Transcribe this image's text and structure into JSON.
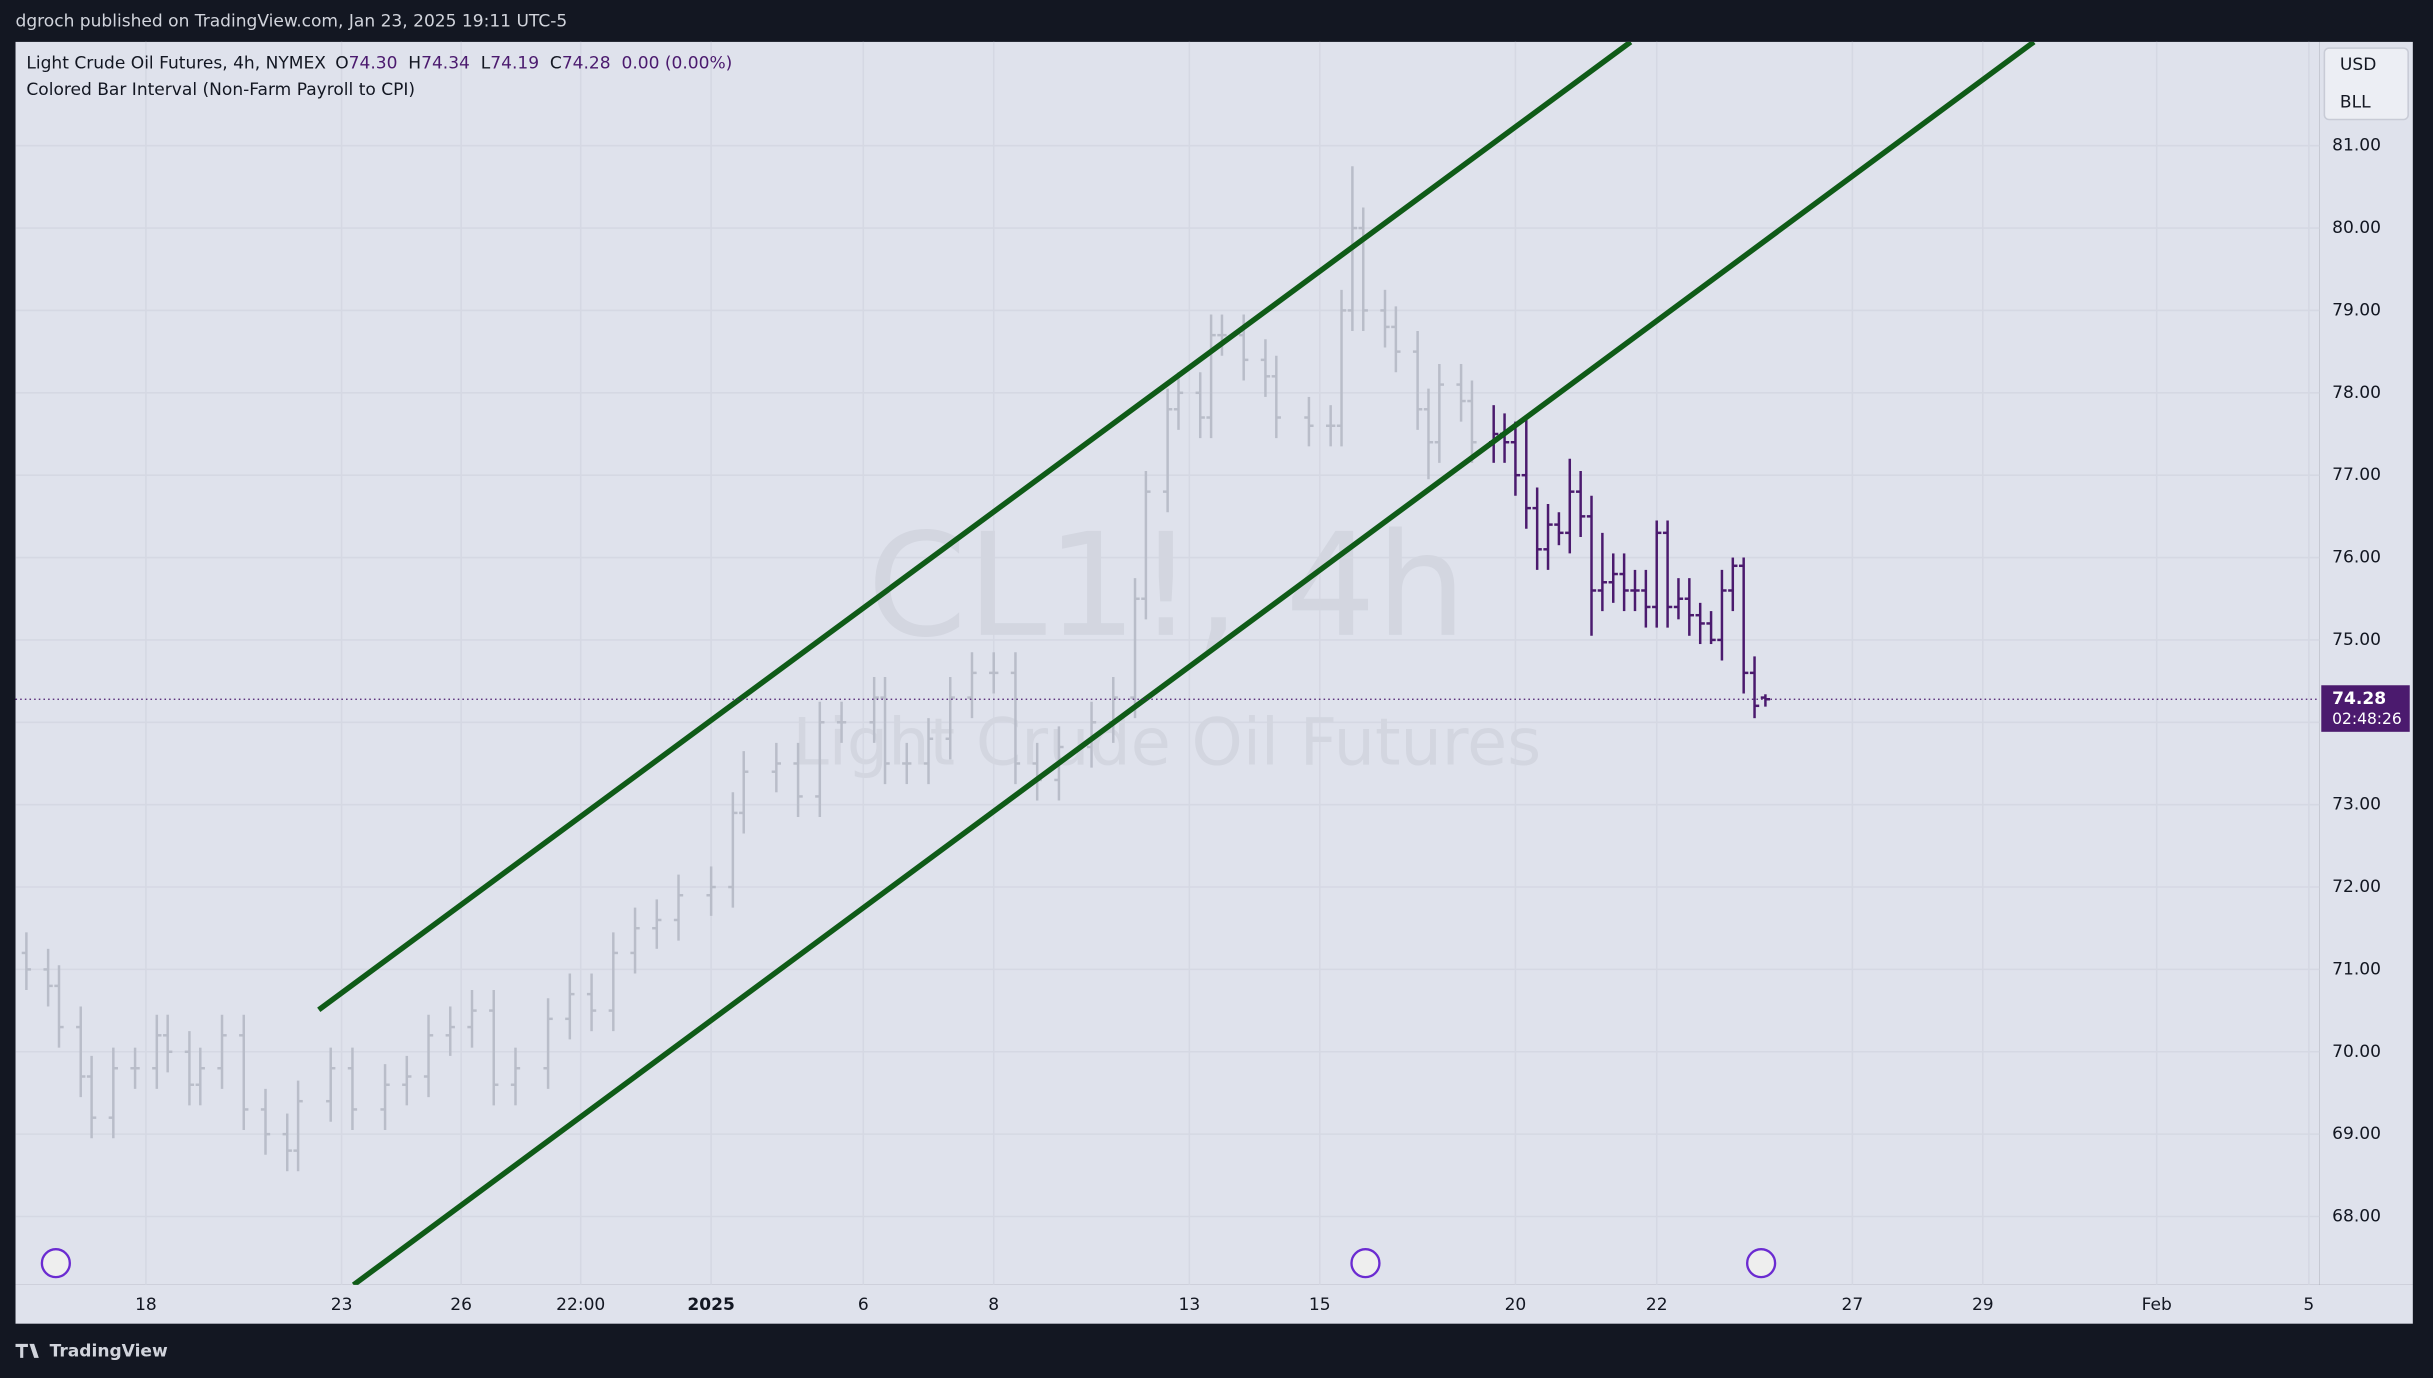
{
  "header": {
    "byline": "dgroch published on TradingView.com, Jan 23, 2025 19:11 UTC-5"
  },
  "footer": {
    "brand": "TradingView"
  },
  "chart_data": {
    "type": "ohlc",
    "symbol": "Light Crude Oil Futures, 4h, NYMEX",
    "quote": [
      {
        "label": "O",
        "value": "74.30"
      },
      {
        "label": "H",
        "value": "74.34"
      },
      {
        "label": "L",
        "value": "74.19"
      },
      {
        "label": "C",
        "value": "74.28"
      },
      {
        "label": "",
        "value": "0.00 (0.00%)"
      }
    ],
    "indicator": "Colored Bar Interval (Non-Farm Payroll to CPI)",
    "watermark": [
      "CL1!, 4h",
      "Light Crude Oil Futures"
    ],
    "currency": "USD",
    "unit": "BLL",
    "last_price": {
      "value": 74.28,
      "label": "74.28"
    },
    "countdown": "02:48:26",
    "xlim": [
      0,
      212
    ],
    "ylim": [
      67.17,
      82.26
    ],
    "xticks": [
      {
        "value": 12,
        "label": "18"
      },
      {
        "value": 30,
        "label": "23"
      },
      {
        "value": 41,
        "label": "26"
      },
      {
        "value": 52,
        "label": "22:00"
      },
      {
        "value": 64,
        "label": "2025"
      },
      {
        "value": 78,
        "label": "6"
      },
      {
        "value": 90,
        "label": "8"
      },
      {
        "value": 108,
        "label": "13"
      },
      {
        "value": 120,
        "label": "15"
      },
      {
        "value": 138,
        "label": "20"
      },
      {
        "value": 151,
        "label": "22"
      },
      {
        "value": 169,
        "label": "27"
      },
      {
        "value": 181,
        "label": "29"
      },
      {
        "value": 197,
        "label": "Feb"
      },
      {
        "value": 211,
        "label": "5"
      }
    ],
    "yticks": [
      {
        "value": 68,
        "label": "68.00"
      },
      {
        "value": 69,
        "label": "69.00"
      },
      {
        "value": 70,
        "label": "70.00"
      },
      {
        "value": 71,
        "label": "71.00"
      },
      {
        "value": 72,
        "label": "72.00"
      },
      {
        "value": 73,
        "label": "73.00"
      },
      {
        "value": 74,
        "label": "74.00"
      },
      {
        "value": 75,
        "label": "75.00"
      },
      {
        "value": 76,
        "label": "76.00"
      },
      {
        "value": 77,
        "label": "77.00"
      },
      {
        "value": 78,
        "label": "78.00"
      },
      {
        "value": 79,
        "label": "79.00"
      },
      {
        "value": 80,
        "label": "80.00"
      },
      {
        "value": 81,
        "label": "81.00"
      }
    ],
    "grid": true,
    "series": [
      {
        "color": "#b9bdc9",
        "x": [
          1,
          3,
          4,
          6,
          7,
          9,
          11,
          13,
          14,
          16,
          17,
          19,
          21,
          23,
          25,
          26,
          29,
          31,
          34,
          36,
          38,
          40,
          42,
          44,
          46,
          49,
          51,
          53,
          55,
          57,
          59,
          61,
          64,
          66,
          67,
          70,
          72,
          74,
          76,
          79,
          80,
          82,
          84,
          86,
          88,
          90,
          92,
          94,
          96,
          99,
          101,
          103,
          104,
          106,
          107,
          109,
          110,
          111,
          113,
          115,
          116,
          119,
          121,
          122,
          123,
          124,
          126,
          127,
          129,
          130,
          131,
          133,
          134
        ],
        "open": [
          71.2,
          71.0,
          70.8,
          70.3,
          69.7,
          69.2,
          69.8,
          69.8,
          70.2,
          70.0,
          69.6,
          69.8,
          70.2,
          69.3,
          69.0,
          68.8,
          69.4,
          69.8,
          69.3,
          69.6,
          69.7,
          70.2,
          70.3,
          70.5,
          69.6,
          69.8,
          70.4,
          70.7,
          70.5,
          71.2,
          71.5,
          71.6,
          71.9,
          72.0,
          72.9,
          73.4,
          73.5,
          73.1,
          74.0,
          74.0,
          74.3,
          73.5,
          73.5,
          73.8,
          74.3,
          74.6,
          74.6,
          73.5,
          73.3,
          73.7,
          74.0,
          74.3,
          75.5,
          76.8,
          77.8,
          78.0,
          77.7,
          78.7,
          78.7,
          78.4,
          78.2,
          77.7,
          77.6,
          77.6,
          79.0,
          80.0,
          79.0,
          78.8,
          78.5,
          77.8,
          77.4,
          78.1,
          77.9
        ],
        "high": [
          71.45,
          71.25,
          71.05,
          70.55,
          69.95,
          70.05,
          70.05,
          70.45,
          70.45,
          70.25,
          70.05,
          70.45,
          70.45,
          69.55,
          69.25,
          69.65,
          70.05,
          70.05,
          69.85,
          69.95,
          70.45,
          70.55,
          70.75,
          70.75,
          70.05,
          70.65,
          70.95,
          70.95,
          71.45,
          71.75,
          71.85,
          72.15,
          72.25,
          73.15,
          73.65,
          73.75,
          73.75,
          74.25,
          74.25,
          74.55,
          74.55,
          73.75,
          74.05,
          74.55,
          74.85,
          74.85,
          74.85,
          73.75,
          73.95,
          74.25,
          74.55,
          75.75,
          77.05,
          78.05,
          78.25,
          78.25,
          78.95,
          78.95,
          78.95,
          78.65,
          78.45,
          77.95,
          77.85,
          79.25,
          80.75,
          80.25,
          79.25,
          79.05,
          78.75,
          78.05,
          78.35,
          78.35,
          78.15
        ],
        "low": [
          70.75,
          70.55,
          70.05,
          69.45,
          68.95,
          68.95,
          69.55,
          69.55,
          69.75,
          69.35,
          69.35,
          69.55,
          69.05,
          68.75,
          68.55,
          68.55,
          69.15,
          69.05,
          69.05,
          69.35,
          69.45,
          69.95,
          70.05,
          69.35,
          69.35,
          69.55,
          70.15,
          70.25,
          70.25,
          70.95,
          71.25,
          71.35,
          71.65,
          71.75,
          72.65,
          73.15,
          72.85,
          72.85,
          73.75,
          73.75,
          73.25,
          73.25,
          73.25,
          73.55,
          74.05,
          74.35,
          73.25,
          73.05,
          73.05,
          73.45,
          73.75,
          74.05,
          75.25,
          76.55,
          77.55,
          77.45,
          77.45,
          78.45,
          78.15,
          77.95,
          77.45,
          77.35,
          77.35,
          77.35,
          78.75,
          78.75,
          78.55,
          78.25,
          77.55,
          76.95,
          77.15,
          77.65,
          77.15
        ],
        "close": [
          71.0,
          70.8,
          70.3,
          69.7,
          69.2,
          69.8,
          69.8,
          70.2,
          70.0,
          69.6,
          69.8,
          70.2,
          69.3,
          69.0,
          68.8,
          69.4,
          69.8,
          69.3,
          69.6,
          69.7,
          70.2,
          70.3,
          70.5,
          69.6,
          69.8,
          70.4,
          70.7,
          70.5,
          71.2,
          71.5,
          71.6,
          71.9,
          72.0,
          72.9,
          73.4,
          73.5,
          73.1,
          74.0,
          74.0,
          74.3,
          73.5,
          73.5,
          73.8,
          74.3,
          74.6,
          74.6,
          73.5,
          73.3,
          73.7,
          74.0,
          74.3,
          75.5,
          76.8,
          77.8,
          78.0,
          77.7,
          78.7,
          78.7,
          78.4,
          78.2,
          77.7,
          77.6,
          77.6,
          79.0,
          80.0,
          79.0,
          78.8,
          78.5,
          77.8,
          77.4,
          78.1,
          77.9,
          77.4
        ]
      },
      {
        "color": "#4b1a6e",
        "x": [
          136,
          137,
          138,
          139,
          140,
          141,
          142,
          143,
          144,
          145,
          146,
          147,
          148,
          149,
          150,
          151,
          152,
          153,
          154,
          155,
          156,
          157,
          158,
          159,
          160,
          161
        ],
        "open": [
          77.4,
          77.5,
          77.4,
          77.0,
          76.6,
          76.1,
          76.4,
          76.3,
          76.8,
          76.5,
          75.6,
          75.7,
          75.8,
          75.6,
          75.6,
          75.4,
          76.3,
          75.4,
          75.5,
          75.3,
          75.2,
          75.0,
          75.6,
          75.9,
          74.6,
          74.3
        ],
        "high": [
          77.85,
          77.75,
          77.65,
          77.7,
          76.85,
          76.65,
          76.55,
          77.2,
          77.05,
          76.75,
          76.3,
          76.05,
          76.05,
          75.85,
          75.85,
          76.45,
          76.45,
          75.75,
          75.75,
          75.45,
          75.35,
          75.85,
          76.0,
          76.0,
          74.8,
          74.34
        ],
        "low": [
          77.15,
          77.15,
          76.75,
          76.35,
          75.85,
          75.85,
          76.15,
          76.05,
          76.25,
          75.05,
          75.35,
          75.45,
          75.35,
          75.35,
          75.15,
          75.15,
          75.15,
          75.25,
          75.05,
          74.95,
          74.95,
          74.75,
          75.35,
          74.35,
          74.05,
          74.19
        ],
        "close": [
          77.5,
          77.4,
          77.0,
          76.6,
          76.1,
          76.4,
          76.3,
          76.8,
          76.5,
          75.6,
          75.7,
          75.8,
          75.6,
          75.6,
          75.4,
          76.3,
          75.4,
          75.5,
          75.3,
          75.2,
          75.0,
          75.6,
          75.9,
          74.6,
          74.2,
          74.28
        ]
      }
    ],
    "trendlines": [
      {
        "color": "#0f5b17",
        "x": [
          27.9,
          148.6
        ],
        "y": [
          70.51,
          82.26
        ]
      },
      {
        "color": "#0f5b17",
        "x": [
          31.1,
          185.7
        ],
        "y": [
          67.17,
          82.26
        ]
      }
    ]
  }
}
